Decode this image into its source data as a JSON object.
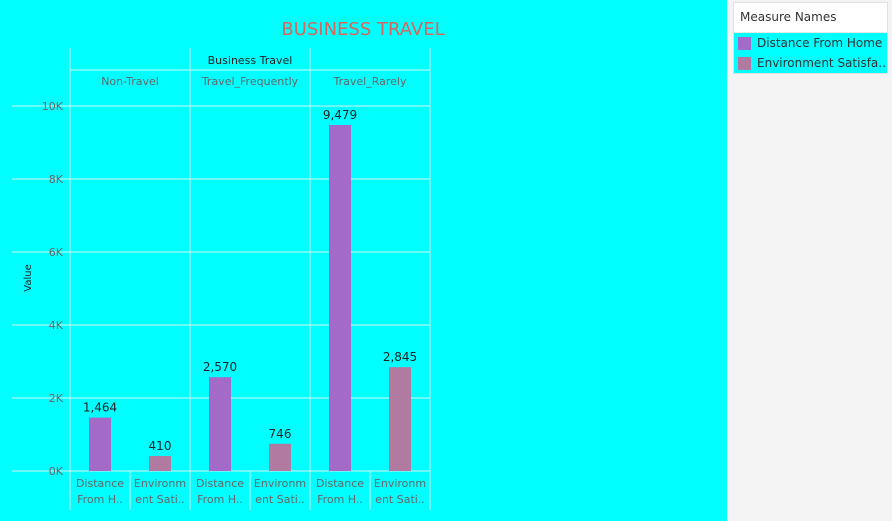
{
  "chart_data": {
    "type": "bar",
    "title": "BUSINESS TRAVEL",
    "column_header": "Business Travel",
    "groups": [
      "Non-Travel",
      "Travel_Frequently",
      "Travel_Rarely"
    ],
    "category_labels": [
      [
        "Distance",
        "From H.."
      ],
      [
        "Environm",
        "ent Sati.."
      ]
    ],
    "ylabel": "Value",
    "ylim": [
      0,
      10000
    ],
    "yticks": [
      0,
      2000,
      4000,
      6000,
      8000,
      10000
    ],
    "ytick_labels": [
      "0K",
      "2K",
      "4K",
      "6K",
      "8K",
      "10K"
    ],
    "series": [
      {
        "name": "Distance From Home",
        "color": "#a36ac8",
        "values": [
          1464,
          2570,
          9479
        ],
        "labels": [
          "1,464",
          "2,570",
          "9,479"
        ]
      },
      {
        "name": "Environment Satisfa..",
        "color": "#b07aa1",
        "values": [
          410,
          746,
          2845
        ],
        "labels": [
          "410",
          "746",
          "2,845"
        ]
      }
    ],
    "grid": true
  },
  "legend": {
    "title": "Measure Names",
    "items": [
      {
        "label": "Distance From Home",
        "color": "#a36ac8"
      },
      {
        "label": "Environment Satisfa..",
        "color": "#b07aa1"
      }
    ]
  }
}
